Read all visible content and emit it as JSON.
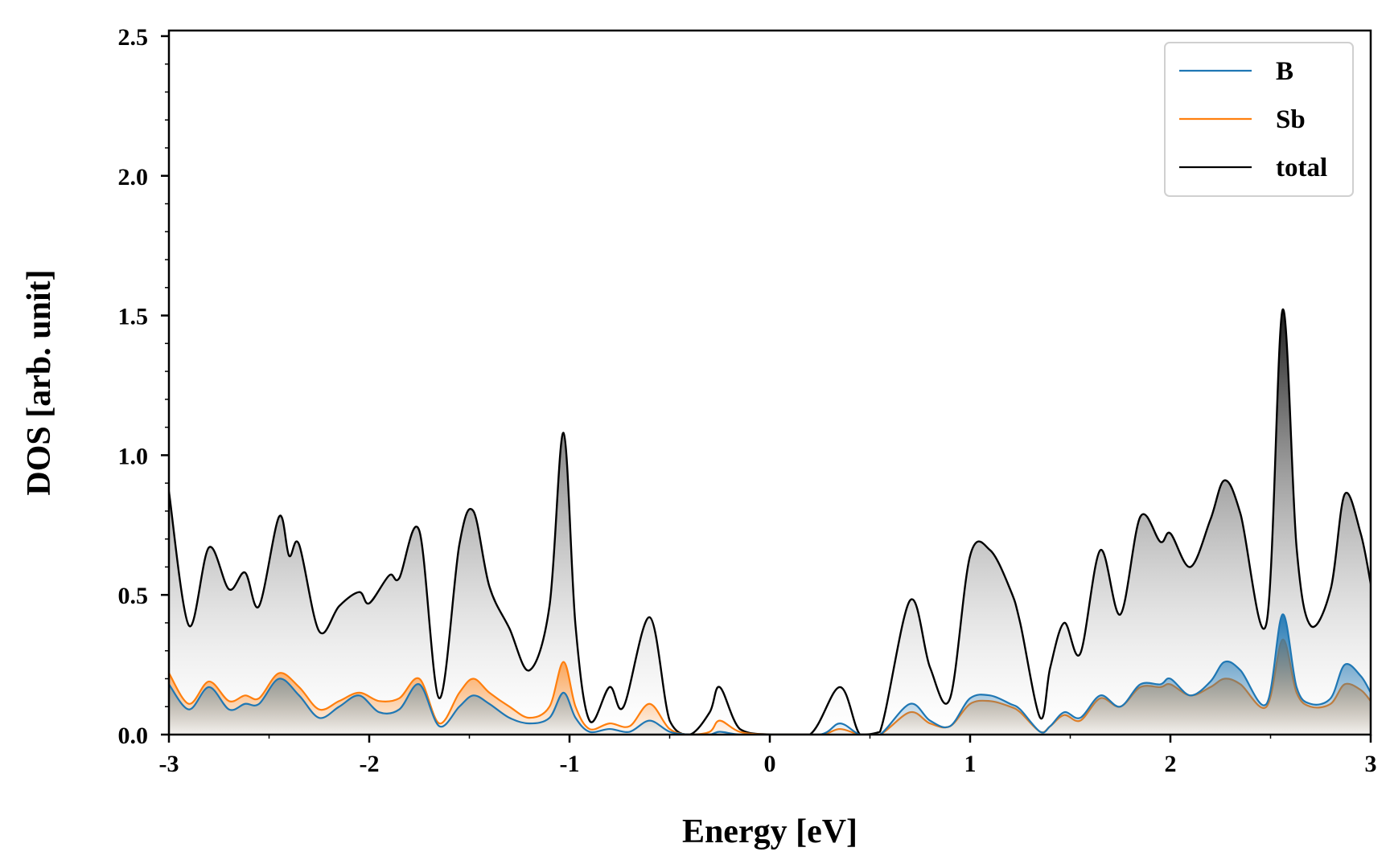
{
  "chart_data": {
    "type": "area",
    "title": "",
    "xlabel": "Energy [eV]",
    "ylabel": "DOS [arb. unit]",
    "xlim": [
      -3,
      3
    ],
    "ylim": [
      0,
      2.52
    ],
    "x_ticks": [
      -3,
      -2,
      -1,
      0,
      1,
      2,
      3
    ],
    "x_tick_labels": [
      "-3",
      "-2",
      "-1",
      "0",
      "1",
      "2",
      "3"
    ],
    "y_ticks": [
      0,
      0.5,
      1.0,
      1.5,
      2.0,
      2.5
    ],
    "y_tick_labels": [
      "0.0",
      "0.5",
      "1.0",
      "1.5",
      "2.0",
      "2.5"
    ],
    "grid": false,
    "legend_position": "top-right",
    "series": [
      {
        "name": "B",
        "color": "#1f77b4",
        "fill": "gradient-blue",
        "points": [
          [
            -3.0,
            0.18
          ],
          [
            -2.9,
            0.09
          ],
          [
            -2.8,
            0.17
          ],
          [
            -2.7,
            0.09
          ],
          [
            -2.62,
            0.11
          ],
          [
            -2.55,
            0.11
          ],
          [
            -2.45,
            0.2
          ],
          [
            -2.35,
            0.14
          ],
          [
            -2.25,
            0.06
          ],
          [
            -2.15,
            0.1
          ],
          [
            -2.05,
            0.14
          ],
          [
            -1.95,
            0.08
          ],
          [
            -1.85,
            0.09
          ],
          [
            -1.75,
            0.18
          ],
          [
            -1.65,
            0.03
          ],
          [
            -1.55,
            0.1
          ],
          [
            -1.48,
            0.14
          ],
          [
            -1.4,
            0.11
          ],
          [
            -1.3,
            0.06
          ],
          [
            -1.2,
            0.04
          ],
          [
            -1.1,
            0.06
          ],
          [
            -1.03,
            0.15
          ],
          [
            -0.97,
            0.06
          ],
          [
            -0.9,
            0.01
          ],
          [
            -0.8,
            0.02
          ],
          [
            -0.7,
            0.01
          ],
          [
            -0.6,
            0.05
          ],
          [
            -0.5,
            0.01
          ],
          [
            -0.4,
            0.0
          ],
          [
            -0.3,
            0.0
          ],
          [
            -0.25,
            0.01
          ],
          [
            -0.15,
            0.0
          ],
          [
            0.0,
            0.0
          ],
          [
            0.25,
            0.0
          ],
          [
            0.35,
            0.04
          ],
          [
            0.45,
            0.0
          ],
          [
            0.55,
            0.0
          ],
          [
            0.7,
            0.11
          ],
          [
            0.8,
            0.05
          ],
          [
            0.9,
            0.03
          ],
          [
            1.0,
            0.13
          ],
          [
            1.1,
            0.14
          ],
          [
            1.2,
            0.11
          ],
          [
            1.25,
            0.09
          ],
          [
            1.35,
            0.01
          ],
          [
            1.4,
            0.03
          ],
          [
            1.47,
            0.08
          ],
          [
            1.55,
            0.06
          ],
          [
            1.65,
            0.14
          ],
          [
            1.75,
            0.1
          ],
          [
            1.85,
            0.18
          ],
          [
            1.95,
            0.18
          ],
          [
            2.0,
            0.2
          ],
          [
            2.1,
            0.14
          ],
          [
            2.2,
            0.19
          ],
          [
            2.27,
            0.26
          ],
          [
            2.35,
            0.23
          ],
          [
            2.48,
            0.11
          ],
          [
            2.56,
            0.43
          ],
          [
            2.63,
            0.17
          ],
          [
            2.7,
            0.11
          ],
          [
            2.8,
            0.13
          ],
          [
            2.87,
            0.25
          ],
          [
            2.95,
            0.21
          ],
          [
            3.0,
            0.15
          ]
        ]
      },
      {
        "name": "Sb",
        "color": "#ff7f0e",
        "fill": "gradient-orange",
        "points": [
          [
            -3.0,
            0.22
          ],
          [
            -2.9,
            0.11
          ],
          [
            -2.8,
            0.19
          ],
          [
            -2.7,
            0.12
          ],
          [
            -2.62,
            0.14
          ],
          [
            -2.55,
            0.13
          ],
          [
            -2.45,
            0.22
          ],
          [
            -2.35,
            0.17
          ],
          [
            -2.25,
            0.09
          ],
          [
            -2.15,
            0.12
          ],
          [
            -2.05,
            0.15
          ],
          [
            -1.95,
            0.12
          ],
          [
            -1.85,
            0.13
          ],
          [
            -1.75,
            0.2
          ],
          [
            -1.65,
            0.04
          ],
          [
            -1.55,
            0.15
          ],
          [
            -1.48,
            0.2
          ],
          [
            -1.4,
            0.15
          ],
          [
            -1.3,
            0.1
          ],
          [
            -1.2,
            0.06
          ],
          [
            -1.1,
            0.1
          ],
          [
            -1.03,
            0.26
          ],
          [
            -0.97,
            0.1
          ],
          [
            -0.9,
            0.02
          ],
          [
            -0.8,
            0.04
          ],
          [
            -0.7,
            0.03
          ],
          [
            -0.6,
            0.11
          ],
          [
            -0.5,
            0.02
          ],
          [
            -0.4,
            0.0
          ],
          [
            -0.3,
            0.01
          ],
          [
            -0.25,
            0.05
          ],
          [
            -0.15,
            0.01
          ],
          [
            0.0,
            0.0
          ],
          [
            0.25,
            0.0
          ],
          [
            0.35,
            0.02
          ],
          [
            0.45,
            0.0
          ],
          [
            0.55,
            0.0
          ],
          [
            0.7,
            0.08
          ],
          [
            0.8,
            0.04
          ],
          [
            0.9,
            0.03
          ],
          [
            1.0,
            0.11
          ],
          [
            1.1,
            0.12
          ],
          [
            1.2,
            0.1
          ],
          [
            1.25,
            0.08
          ],
          [
            1.35,
            0.01
          ],
          [
            1.4,
            0.03
          ],
          [
            1.47,
            0.07
          ],
          [
            1.55,
            0.05
          ],
          [
            1.65,
            0.13
          ],
          [
            1.75,
            0.1
          ],
          [
            1.85,
            0.17
          ],
          [
            1.95,
            0.17
          ],
          [
            2.0,
            0.18
          ],
          [
            2.1,
            0.14
          ],
          [
            2.2,
            0.17
          ],
          [
            2.27,
            0.2
          ],
          [
            2.35,
            0.18
          ],
          [
            2.48,
            0.1
          ],
          [
            2.56,
            0.34
          ],
          [
            2.63,
            0.15
          ],
          [
            2.7,
            0.1
          ],
          [
            2.8,
            0.11
          ],
          [
            2.87,
            0.18
          ],
          [
            2.95,
            0.16
          ],
          [
            3.0,
            0.12
          ]
        ]
      },
      {
        "name": "total",
        "color": "#000000",
        "fill": "gradient-gray",
        "points": [
          [
            -3.0,
            0.87
          ],
          [
            -2.9,
            0.39
          ],
          [
            -2.8,
            0.67
          ],
          [
            -2.7,
            0.52
          ],
          [
            -2.62,
            0.58
          ],
          [
            -2.55,
            0.46
          ],
          [
            -2.45,
            0.78
          ],
          [
            -2.4,
            0.64
          ],
          [
            -2.35,
            0.68
          ],
          [
            -2.25,
            0.37
          ],
          [
            -2.15,
            0.46
          ],
          [
            -2.05,
            0.51
          ],
          [
            -2.0,
            0.47
          ],
          [
            -1.9,
            0.57
          ],
          [
            -1.85,
            0.56
          ],
          [
            -1.75,
            0.73
          ],
          [
            -1.65,
            0.13
          ],
          [
            -1.55,
            0.68
          ],
          [
            -1.48,
            0.8
          ],
          [
            -1.4,
            0.53
          ],
          [
            -1.3,
            0.38
          ],
          [
            -1.2,
            0.23
          ],
          [
            -1.1,
            0.46
          ],
          [
            -1.03,
            1.08
          ],
          [
            -0.97,
            0.39
          ],
          [
            -0.9,
            0.05
          ],
          [
            -0.8,
            0.17
          ],
          [
            -0.73,
            0.1
          ],
          [
            -0.6,
            0.42
          ],
          [
            -0.5,
            0.05
          ],
          [
            -0.4,
            0.0
          ],
          [
            -0.3,
            0.08
          ],
          [
            -0.25,
            0.17
          ],
          [
            -0.15,
            0.02
          ],
          [
            0.0,
            0.0
          ],
          [
            0.2,
            0.0
          ],
          [
            0.35,
            0.17
          ],
          [
            0.45,
            0.0
          ],
          [
            0.55,
            0.01
          ],
          [
            0.7,
            0.48
          ],
          [
            0.8,
            0.24
          ],
          [
            0.9,
            0.13
          ],
          [
            1.0,
            0.64
          ],
          [
            1.1,
            0.66
          ],
          [
            1.2,
            0.52
          ],
          [
            1.25,
            0.4
          ],
          [
            1.35,
            0.06
          ],
          [
            1.4,
            0.24
          ],
          [
            1.47,
            0.4
          ],
          [
            1.55,
            0.29
          ],
          [
            1.65,
            0.66
          ],
          [
            1.75,
            0.43
          ],
          [
            1.85,
            0.78
          ],
          [
            1.95,
            0.69
          ],
          [
            2.0,
            0.72
          ],
          [
            2.1,
            0.6
          ],
          [
            2.2,
            0.77
          ],
          [
            2.27,
            0.91
          ],
          [
            2.35,
            0.79
          ],
          [
            2.48,
            0.4
          ],
          [
            2.56,
            1.52
          ],
          [
            2.63,
            0.67
          ],
          [
            2.7,
            0.39
          ],
          [
            2.8,
            0.52
          ],
          [
            2.87,
            0.86
          ],
          [
            2.95,
            0.72
          ],
          [
            3.0,
            0.54
          ]
        ]
      }
    ]
  }
}
